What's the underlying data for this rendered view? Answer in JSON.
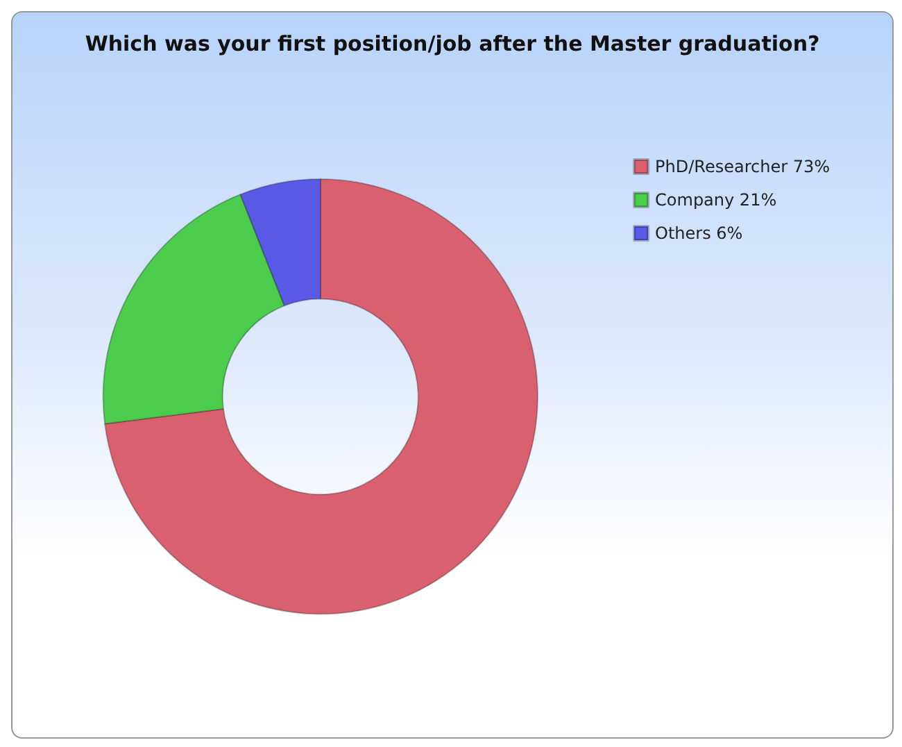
{
  "chart_data": {
    "type": "donut",
    "title": "Which was your first position/job after the Master graduation?",
    "categories": [
      "PhD/Researcher",
      "Company",
      "Others"
    ],
    "values": [
      73,
      21,
      6
    ],
    "value_labels": [
      "73%",
      "21%",
      "6%"
    ],
    "colors": [
      "#d9606e",
      "#4ccc4c",
      "#5a5ae6"
    ],
    "legend": "top right"
  }
}
